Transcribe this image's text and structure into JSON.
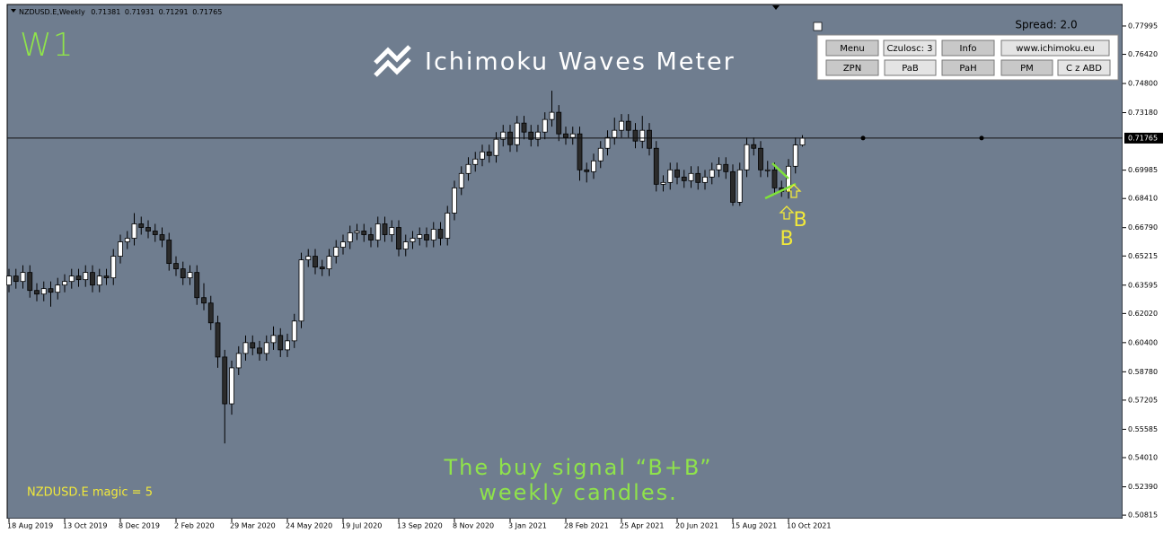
{
  "window": {
    "symbol": "NZDUSD.E,Weekly",
    "timeframe": "W1",
    "logo": "Ichimoku Waves Meter",
    "spread": "Spread: 2.0",
    "magic": "NZDUSD.E  magic = 5",
    "buttons": [
      [
        "Menu",
        "Czulosc: 3",
        "Info",
        "www.ichimoku.eu"
      ],
      [
        "ZPN",
        "PaB",
        "PaH",
        "PM",
        "C z ABD"
      ]
    ],
    "caption": [
      "The buy signal “B+B”",
      "weekly candles."
    ],
    "signals": [
      "B",
      "B"
    ]
  },
  "chart_data": {
    "type": "candlestick",
    "categories": [
      "18 Aug 2019",
      null,
      null,
      null,
      null,
      null,
      null,
      null,
      "13 Oct 2019",
      null,
      null,
      null,
      null,
      null,
      null,
      null,
      "8 Dec 2019",
      null,
      null,
      null,
      null,
      null,
      null,
      null,
      "2 Feb 2020",
      null,
      null,
      null,
      null,
      null,
      null,
      null,
      "29 Mar 2020",
      null,
      null,
      null,
      null,
      null,
      null,
      null,
      "24 May 2020",
      null,
      null,
      null,
      null,
      null,
      null,
      null,
      "19 Jul 2020",
      null,
      null,
      null,
      null,
      null,
      null,
      null,
      "13 Sep 2020",
      null,
      null,
      null,
      null,
      null,
      null,
      null,
      "8 Nov 2020",
      null,
      null,
      null,
      null,
      null,
      null,
      null,
      "3 Jan 2021",
      null,
      null,
      null,
      null,
      null,
      null,
      null,
      "28 Feb 2021",
      null,
      null,
      null,
      null,
      null,
      null,
      null,
      "25 Apr 2021",
      null,
      null,
      null,
      null,
      null,
      null,
      null,
      "20 Jun 2021",
      null,
      null,
      null,
      null,
      null,
      null,
      null,
      "15 Aug 2021",
      null,
      null,
      null,
      null,
      null,
      null,
      null,
      "10 Oct 2021",
      null,
      null
    ],
    "open": [
      0.636,
      0.641,
      0.638,
      0.643,
      0.633,
      0.631,
      0.634,
      0.632,
      0.636,
      0.638,
      0.641,
      0.639,
      0.643,
      0.636,
      0.641,
      0.64,
      0.652,
      0.66,
      0.662,
      0.67,
      0.668,
      0.666,
      0.664,
      0.661,
      0.648,
      0.645,
      0.64,
      0.643,
      0.629,
      0.626,
      0.615,
      0.596,
      0.57,
      0.59,
      0.598,
      0.604,
      0.601,
      0.598,
      0.604,
      0.608,
      0.6,
      0.605,
      0.616,
      0.65,
      0.652,
      0.646,
      0.645,
      0.652,
      0.657,
      0.66,
      0.665,
      0.666,
      0.664,
      0.661,
      0.67,
      0.664,
      0.668,
      0.656,
      0.66,
      0.662,
      0.664,
      0.661,
      0.667,
      0.662,
      0.676,
      0.69,
      0.698,
      0.703,
      0.706,
      0.71,
      0.708,
      0.717,
      0.721,
      0.714,
      0.726,
      0.721,
      0.717,
      0.721,
      0.728,
      0.732,
      0.72,
      0.718,
      0.72,
      0.7,
      0.699,
      0.705,
      0.712,
      0.718,
      0.722,
      0.727,
      0.722,
      0.716,
      0.722,
      0.712,
      0.692,
      0.693,
      0.7,
      0.696,
      0.694,
      0.698,
      0.693,
      0.696,
      0.7,
      0.703,
      0.699,
      0.682,
      0.7,
      0.714,
      0.712,
      0.7,
      0.7,
      0.69,
      0.688,
      0.702,
      0.71381
    ],
    "high": [
      0.645,
      0.645,
      0.647,
      0.647,
      0.637,
      0.638,
      0.638,
      0.64,
      0.642,
      0.645,
      0.645,
      0.647,
      0.647,
      0.645,
      0.645,
      0.656,
      0.664,
      0.666,
      0.676,
      0.674,
      0.672,
      0.67,
      0.668,
      0.665,
      0.652,
      0.649,
      0.647,
      0.647,
      0.637,
      0.63,
      0.619,
      0.6,
      0.594,
      0.602,
      0.608,
      0.608,
      0.605,
      0.608,
      0.613,
      0.612,
      0.609,
      0.62,
      0.654,
      0.656,
      0.656,
      0.65,
      0.656,
      0.661,
      0.664,
      0.669,
      0.67,
      0.67,
      0.668,
      0.674,
      0.674,
      0.672,
      0.672,
      0.664,
      0.666,
      0.668,
      0.668,
      0.671,
      0.671,
      0.68,
      0.694,
      0.702,
      0.707,
      0.71,
      0.714,
      0.714,
      0.721,
      0.725,
      0.725,
      0.73,
      0.73,
      0.725,
      0.725,
      0.732,
      0.744,
      0.736,
      0.724,
      0.724,
      0.724,
      0.704,
      0.709,
      0.716,
      0.722,
      0.729,
      0.731,
      0.731,
      0.726,
      0.73,
      0.726,
      0.716,
      0.697,
      0.704,
      0.704,
      0.7,
      0.702,
      0.702,
      0.7,
      0.704,
      0.707,
      0.707,
      0.703,
      0.704,
      0.718,
      0.718,
      0.716,
      0.705,
      0.704,
      0.694,
      0.706,
      0.718,
      0.71931
    ],
    "low": [
      0.632,
      0.634,
      0.634,
      0.629,
      0.627,
      0.627,
      0.624,
      0.628,
      0.632,
      0.634,
      0.635,
      0.635,
      0.632,
      0.632,
      0.636,
      0.636,
      0.648,
      0.656,
      0.658,
      0.664,
      0.662,
      0.66,
      0.657,
      0.644,
      0.641,
      0.636,
      0.636,
      0.625,
      0.622,
      0.611,
      0.59,
      0.548,
      0.564,
      0.586,
      0.594,
      0.597,
      0.594,
      0.594,
      0.6,
      0.596,
      0.596,
      0.601,
      0.612,
      0.646,
      0.642,
      0.641,
      0.641,
      0.648,
      0.653,
      0.656,
      0.661,
      0.66,
      0.657,
      0.657,
      0.66,
      0.66,
      0.652,
      0.652,
      0.656,
      0.658,
      0.657,
      0.657,
      0.658,
      0.658,
      0.672,
      0.686,
      0.694,
      0.699,
      0.702,
      0.704,
      0.704,
      0.713,
      0.71,
      0.71,
      0.717,
      0.713,
      0.713,
      0.717,
      0.724,
      0.716,
      0.714,
      0.714,
      0.694,
      0.693,
      0.695,
      0.701,
      0.708,
      0.714,
      0.718,
      0.718,
      0.712,
      0.712,
      0.708,
      0.688,
      0.688,
      0.689,
      0.692,
      0.69,
      0.69,
      0.689,
      0.689,
      0.692,
      0.696,
      0.695,
      0.68,
      0.68,
      0.696,
      0.708,
      0.696,
      0.696,
      0.686,
      0.685,
      0.684,
      0.698,
      0.71291
    ],
    "close": [
      0.641,
      0.638,
      0.643,
      0.633,
      0.631,
      0.634,
      0.632,
      0.636,
      0.638,
      0.641,
      0.639,
      0.643,
      0.636,
      0.641,
      0.64,
      0.652,
      0.66,
      0.662,
      0.67,
      0.668,
      0.666,
      0.664,
      0.661,
      0.648,
      0.645,
      0.64,
      0.643,
      0.629,
      0.626,
      0.615,
      0.596,
      0.57,
      0.59,
      0.598,
      0.604,
      0.601,
      0.598,
      0.604,
      0.608,
      0.6,
      0.605,
      0.616,
      0.65,
      0.652,
      0.646,
      0.645,
      0.652,
      0.657,
      0.66,
      0.665,
      0.666,
      0.664,
      0.661,
      0.67,
      0.664,
      0.668,
      0.656,
      0.66,
      0.662,
      0.664,
      0.661,
      0.667,
      0.662,
      0.676,
      0.69,
      0.698,
      0.703,
      0.706,
      0.71,
      0.708,
      0.717,
      0.721,
      0.714,
      0.726,
      0.721,
      0.717,
      0.721,
      0.728,
      0.732,
      0.72,
      0.718,
      0.72,
      0.7,
      0.699,
      0.705,
      0.712,
      0.718,
      0.722,
      0.727,
      0.722,
      0.716,
      0.722,
      0.712,
      0.692,
      0.693,
      0.7,
      0.696,
      0.694,
      0.698,
      0.693,
      0.696,
      0.7,
      0.703,
      0.699,
      0.682,
      0.7,
      0.714,
      0.712,
      0.7,
      0.7,
      0.69,
      0.688,
      0.702,
      0.71381,
      0.71765
    ],
    "ylim": [
      0.5062,
      0.7919
    ],
    "yticks": [
      0.77995,
      {
        "value": 0.7642,
        "label": "0.76420"
      },
      {
        "value": 0.748,
        "label": "0.74800"
      },
      {
        "value": 0.7318,
        "label": "0.73180"
      },
      0.69985,
      {
        "value": 0.6841,
        "label": "0.68410"
      },
      {
        "value": 0.6679,
        "label": "0.66790"
      },
      0.65215,
      0.63595,
      {
        "value": 0.6202,
        "label": "0.62020"
      },
      {
        "value": 0.604,
        "label": "0.60400"
      },
      {
        "value": 0.5878,
        "label": "0.58780"
      },
      0.57205,
      0.55585,
      {
        "value": 0.5401,
        "label": "0.54010"
      },
      {
        "value": 0.5239,
        "label": "0.52390"
      },
      0.50815
    ],
    "bull_color": "#ffffff",
    "bear_color": "#2b2b2b",
    "background": "#6f7d8f",
    "grid": false
  }
}
